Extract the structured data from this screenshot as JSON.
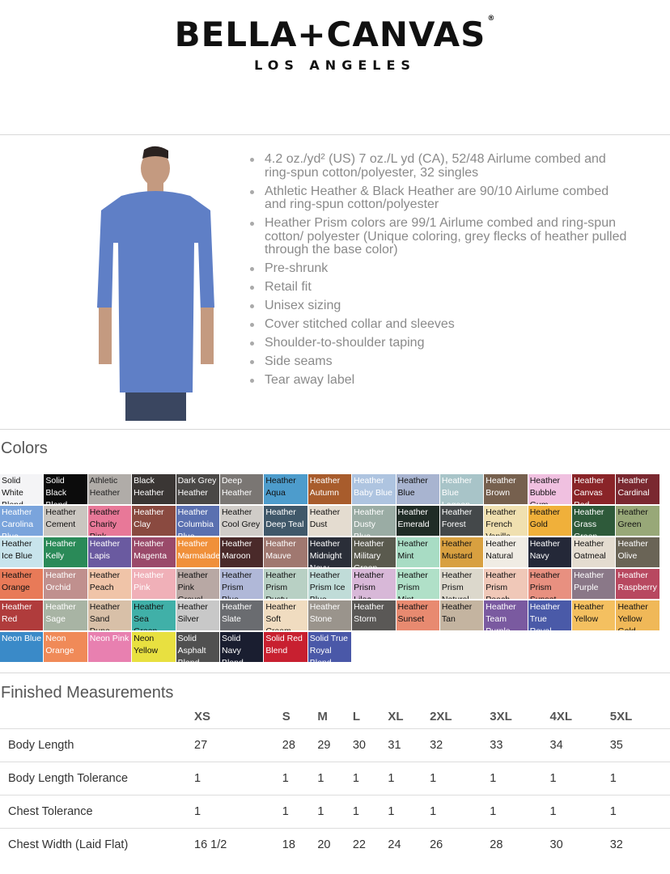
{
  "header": {
    "brand": "BELLA+CANVAS",
    "reg": "®",
    "subtitle": "LOS ANGELES"
  },
  "features": [
    "4.2 oz./yd² (US) 7 oz./L yd (CA), 52/48 Airlume combed and ring-spun cotton/polyester, 32 singles",
    "Athletic Heather & Black Heather are 90/10 Airlume combed and ring-spun cotton/polyester",
    "Heather Prism colors are 99/1 Airlume combed and ring-spun cotton/ polyester (Unique coloring, grey flecks of heather pulled through the base color)",
    "Pre-shrunk",
    "Retail fit",
    "Unisex sizing",
    "Cover stitched collar and sleeves",
    "Shoulder-to-shoulder taping",
    "Side seams",
    "Tear away label"
  ],
  "colors_title": "Colors",
  "colors": [
    {
      "name": "Solid White Blend",
      "hex": "#f4f4f6",
      "text": "#111"
    },
    {
      "name": "Solid Black Blend",
      "hex": "#0c0c0c",
      "text": "#fff"
    },
    {
      "name": "Athletic Heather",
      "hex": "#b0aca8",
      "text": "#222"
    },
    {
      "name": "Black Heather",
      "hex": "#3a3634",
      "text": "#fff"
    },
    {
      "name": "Dark Grey Heather",
      "hex": "#4a4846",
      "text": "#fff"
    },
    {
      "name": "Deep Heather",
      "hex": "#7a7673",
      "text": "#fff"
    },
    {
      "name": "Heather Aqua",
      "hex": "#4d9ccc",
      "text": "#111"
    },
    {
      "name": "Heather Autumn",
      "hex": "#a85c2c",
      "text": "#fff"
    },
    {
      "name": "Heather Baby Blue",
      "hex": "#aec4e0",
      "text": "#fff"
    },
    {
      "name": "Heather Blue",
      "hex": "#a8b4d0",
      "text": "#111"
    },
    {
      "name": "Heather Blue Lagoon",
      "hex": "#a8c4c8",
      "text": "#fff"
    },
    {
      "name": "Heather Brown",
      "hex": "#76604e",
      "text": "#fff"
    },
    {
      "name": "Heather Bubble Gum",
      "hex": "#f0c0e0",
      "text": "#111"
    },
    {
      "name": "Heather Canvas Red",
      "hex": "#8a2428",
      "text": "#fff"
    },
    {
      "name": "Heather Cardinal",
      "hex": "#7a2830",
      "text": "#fff"
    },
    {
      "name": "Heather Carolina Blue",
      "hex": "#7aa4dc",
      "text": "#fff"
    },
    {
      "name": "Heather Cement",
      "hex": "#cac6c0",
      "text": "#111"
    },
    {
      "name": "Heather Charity Pink",
      "hex": "#e87898",
      "text": "#111"
    },
    {
      "name": "Heather Clay",
      "hex": "#8a4a40",
      "text": "#fff"
    },
    {
      "name": "Heather Columbia Blue",
      "hex": "#5a70b0",
      "text": "#fff"
    },
    {
      "name": "Heather Cool Grey",
      "hex": "#d0ccc8",
      "text": "#111"
    },
    {
      "name": "Heather Deep Teal",
      "hex": "#40586a",
      "text": "#fff"
    },
    {
      "name": "Heather Dust",
      "hex": "#e4dcd0",
      "text": "#111"
    },
    {
      "name": "Heather Dusty Blue",
      "hex": "#9aaca4",
      "text": "#fff"
    },
    {
      "name": "Heather Emerald",
      "hex": "#202c26",
      "text": "#fff"
    },
    {
      "name": "Heather Forest",
      "hex": "#44484a",
      "text": "#fff"
    },
    {
      "name": "Heather French Vanilla",
      "hex": "#f0e0b0",
      "text": "#111"
    },
    {
      "name": "Heather Gold",
      "hex": "#f0b03a",
      "text": "#111"
    },
    {
      "name": "Heather Grass Green",
      "hex": "#2e5a3a",
      "text": "#fff"
    },
    {
      "name": "Heather Green",
      "hex": "#98a878",
      "text": "#111"
    },
    {
      "name": "Heather Ice Blue",
      "hex": "#c8e4ec",
      "text": "#111"
    },
    {
      "name": "Heather Kelly",
      "hex": "#2a8a58",
      "text": "#fff"
    },
    {
      "name": "Heather Lapis",
      "hex": "#6a5aa0",
      "text": "#fff"
    },
    {
      "name": "Heather Magenta",
      "hex": "#9a4a6a",
      "text": "#fff"
    },
    {
      "name": "Heather Marmalade",
      "hex": "#f0903a",
      "text": "#fff"
    },
    {
      "name": "Heather Maroon",
      "hex": "#4a2a2a",
      "text": "#fff"
    },
    {
      "name": "Heather Mauve",
      "hex": "#a07870",
      "text": "#fff"
    },
    {
      "name": "Heather Midnight Navy",
      "hex": "#2a2e38",
      "text": "#fff"
    },
    {
      "name": "Heather Military Green",
      "hex": "#5a5a4e",
      "text": "#fff"
    },
    {
      "name": "Heather Mint",
      "hex": "#a8dcc4",
      "text": "#111"
    },
    {
      "name": "Heather Mustard",
      "hex": "#d8a040",
      "text": "#111"
    },
    {
      "name": "Heather Natural",
      "hex": "#f0ece4",
      "text": "#111"
    },
    {
      "name": "Heather Navy",
      "hex": "#242838",
      "text": "#fff"
    },
    {
      "name": "Heather Oatmeal",
      "hex": "#e4dcd0",
      "text": "#111"
    },
    {
      "name": "Heather Olive",
      "hex": "#6a6456",
      "text": "#fff"
    },
    {
      "name": "Heather Orange",
      "hex": "#e87a58",
      "text": "#111"
    },
    {
      "name": "Heather Orchid",
      "hex": "#c0908e",
      "text": "#fff"
    },
    {
      "name": "Heather Peach",
      "hex": "#f0c4a8",
      "text": "#111"
    },
    {
      "name": "Heather Pink",
      "hex": "#f0b0b8",
      "text": "#fff"
    },
    {
      "name": "Heather Pink Gravel",
      "hex": "#b8a8a4",
      "text": "#111"
    },
    {
      "name": "Heather Prism Blue",
      "hex": "#b0b8d8",
      "text": "#111"
    },
    {
      "name": "Heather Prism Dusty Blue",
      "hex": "#b8d0c4",
      "text": "#111"
    },
    {
      "name": "Heather Prism Ice Blue",
      "hex": "#c0dcd8",
      "text": "#111"
    },
    {
      "name": "Heather Prism Lilac",
      "hex": "#d8b8d8",
      "text": "#111"
    },
    {
      "name": "Heather Prism Mint",
      "hex": "#b0e0c8",
      "text": "#111"
    },
    {
      "name": "Heather Prism Natural",
      "hex": "#dcd8cc",
      "text": "#111"
    },
    {
      "name": "Heather Prism Peach",
      "hex": "#f0c8b8",
      "text": "#111"
    },
    {
      "name": "Heather Prism Sunset",
      "hex": "#e89080",
      "text": "#111"
    },
    {
      "name": "Heather Purple",
      "hex": "#8a7888",
      "text": "#fff"
    },
    {
      "name": "Heather Raspberry",
      "hex": "#b84860",
      "text": "#fff"
    },
    {
      "name": "Heather Red",
      "hex": "#b03c3c",
      "text": "#fff"
    },
    {
      "name": "Heather Sage",
      "hex": "#a8b4a4",
      "text": "#fff"
    },
    {
      "name": "Heather Sand Dune",
      "hex": "#d8c0a8",
      "text": "#111"
    },
    {
      "name": "Heather Sea Green",
      "hex": "#40b0a8",
      "text": "#111"
    },
    {
      "name": "Heather Silver",
      "hex": "#c8c8c8",
      "text": "#111"
    },
    {
      "name": "Heather Slate",
      "hex": "#6a6c70",
      "text": "#fff"
    },
    {
      "name": "Heather Soft Cream",
      "hex": "#f0dcc0",
      "text": "#111"
    },
    {
      "name": "Heather Stone",
      "hex": "#9a948c",
      "text": "#fff"
    },
    {
      "name": "Heather Storm",
      "hex": "#5a5856",
      "text": "#fff"
    },
    {
      "name": "Heather Sunset",
      "hex": "#e88a70",
      "text": "#111"
    },
    {
      "name": "Heather Tan",
      "hex": "#c4b4a0",
      "text": "#111"
    },
    {
      "name": "Heather Team Purple",
      "hex": "#7a5aa0",
      "text": "#fff"
    },
    {
      "name": "Heather True Royal",
      "hex": "#4a5aa8",
      "text": "#fff"
    },
    {
      "name": "Heather Yellow",
      "hex": "#f4c060",
      "text": "#111"
    },
    {
      "name": "Heather Yellow Gold",
      "hex": "#f0b858",
      "text": "#111"
    },
    {
      "name": "Neon Blue",
      "hex": "#3a8ac8",
      "text": "#fff"
    },
    {
      "name": "Neon Orange",
      "hex": "#f08a58",
      "text": "#fff"
    },
    {
      "name": "Neon Pink",
      "hex": "#e880b0",
      "text": "#fff"
    },
    {
      "name": "Neon Yellow",
      "hex": "#e8e040",
      "text": "#111"
    },
    {
      "name": "Solid Asphalt Blend",
      "hex": "#505050",
      "text": "#fff"
    },
    {
      "name": "Solid Navy Blend",
      "hex": "#1a1e30",
      "text": "#fff"
    },
    {
      "name": "Solid Red Blend",
      "hex": "#c82030",
      "text": "#fff"
    },
    {
      "name": "Solid True Royal Blend",
      "hex": "#4a58a8",
      "text": "#fff"
    }
  ],
  "measurements": {
    "title": "Finished Measurements",
    "sizes": [
      "XS",
      "S",
      "M",
      "L",
      "XL",
      "2XL",
      "3XL",
      "4XL",
      "5XL"
    ],
    "rows": [
      {
        "label": "Body Length",
        "values": [
          "27",
          "28",
          "29",
          "30",
          "31",
          "32",
          "33",
          "34",
          "35"
        ]
      },
      {
        "label": "Body Length Tolerance",
        "values": [
          "1",
          "1",
          "1",
          "1",
          "1",
          "1",
          "1",
          "1",
          "1"
        ]
      },
      {
        "label": "Chest Tolerance",
        "values": [
          "1",
          "1",
          "1",
          "1",
          "1",
          "1",
          "1",
          "1",
          "1"
        ]
      },
      {
        "label": "Chest Width (Laid Flat)",
        "values": [
          "16 1/2",
          "18",
          "20",
          "22",
          "24",
          "26",
          "28",
          "30",
          "32"
        ]
      }
    ]
  }
}
